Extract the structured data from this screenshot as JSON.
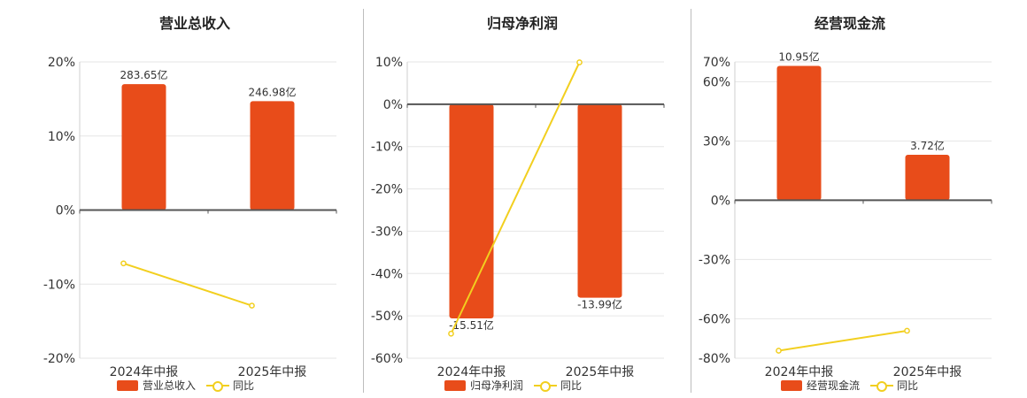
{
  "colors": {
    "bar": "#e84c1a",
    "line": "#f2cf1f",
    "axis": "#555555",
    "grid": "#e6e6e6",
    "text": "#333333"
  },
  "legend": {
    "yoy_label": "同比"
  },
  "chart_data": [
    {
      "type": "bar",
      "title": "营业总收入",
      "categories": [
        "2024年中报",
        "2025年中报"
      ],
      "ylim": [
        -20,
        20
      ],
      "yticks": [
        20,
        10,
        0,
        -10,
        -20
      ],
      "ytick_labels": [
        "20%",
        "10%",
        "0%",
        "-10%",
        "-20%"
      ],
      "series": [
        {
          "name": "营业总收入",
          "kind": "bar",
          "values": [
            17.0,
            14.7
          ],
          "labels": [
            "283.65亿",
            "246.98亿"
          ]
        },
        {
          "name": "同比",
          "kind": "line",
          "values": [
            -7.2,
            -12.9
          ]
        }
      ]
    },
    {
      "type": "bar",
      "title": "归母净利润",
      "categories": [
        "2024年中报",
        "2025年中报"
      ],
      "ylim": [
        -60,
        10
      ],
      "yticks": [
        10,
        0,
        -10,
        -20,
        -30,
        -40,
        -50,
        -60
      ],
      "ytick_labels": [
        "10%",
        "0%",
        "-10%",
        "-20%",
        "-30%",
        "-40%",
        "-50%",
        "-60%"
      ],
      "series": [
        {
          "name": "归母净利润",
          "kind": "bar",
          "values": [
            -50.6,
            -45.7
          ],
          "labels": [
            "-15.51亿",
            "-13.99亿"
          ]
        },
        {
          "name": "同比",
          "kind": "line",
          "values": [
            -54.2,
            9.9
          ]
        }
      ]
    },
    {
      "type": "bar",
      "title": "经营现金流",
      "categories": [
        "2024年中报",
        "2025年中报"
      ],
      "ylim": [
        -80,
        70
      ],
      "yticks": [
        70,
        60,
        30,
        0,
        -30,
        -60,
        -80
      ],
      "ytick_labels": [
        "70%",
        "60%",
        "30%",
        "0%",
        "-30%",
        "-60%",
        "-80%"
      ],
      "series": [
        {
          "name": "经营现金流",
          "kind": "bar",
          "values": [
            68.0,
            23.0
          ],
          "labels": [
            "10.95亿",
            "3.72亿"
          ]
        },
        {
          "name": "同比",
          "kind": "line",
          "values": [
            -76.2,
            -66.1
          ]
        }
      ]
    }
  ]
}
